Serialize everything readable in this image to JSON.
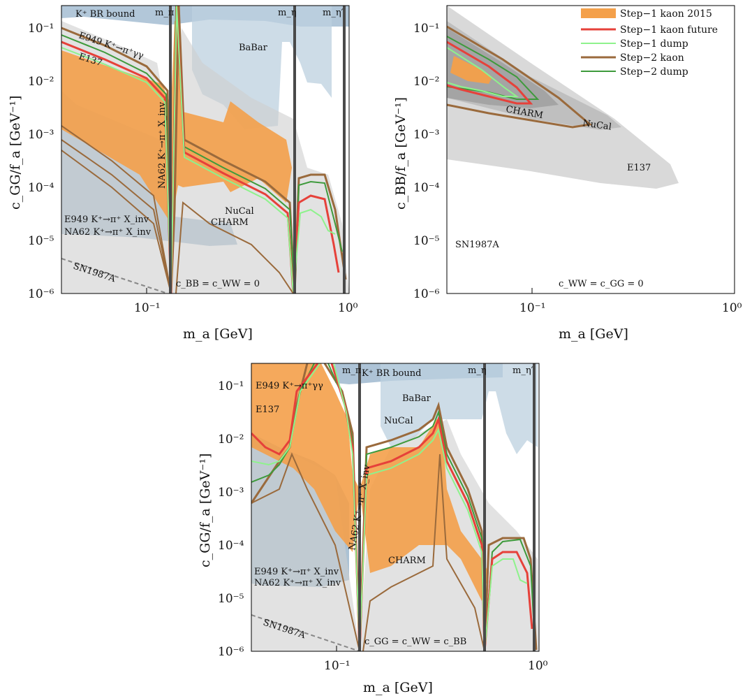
{
  "legend": {
    "entries": [
      {
        "label": "Step−1 kaon 2015",
        "color": "#f4a04a",
        "kind": "patch"
      },
      {
        "label": "Step−1 kaon future",
        "color": "#e6413a",
        "kind": "line"
      },
      {
        "label": "Step−1 dump",
        "color": "#8ef28c",
        "kind": "line"
      },
      {
        "label": "Step−2 kaon",
        "color": "#9a6a3c",
        "kind": "line"
      },
      {
        "label": "Step−2 dump",
        "color": "#3e9a3c",
        "kind": "line"
      }
    ]
  },
  "colors": {
    "kaon2015": "#f4a04a",
    "kaon_future": "#e6413a",
    "dump1": "#8ef28c",
    "kaon2": "#9a6a3c",
    "dump2": "#3e9a3c",
    "excluded_blue": "#9fb9cf",
    "excluded_grey": "#cfcfcf",
    "mass_lines": "#4a4a4a"
  },
  "chart_data": [
    {
      "type": "area",
      "panel": "top-left",
      "xscale": "log",
      "yscale": "log",
      "xlim": [
        0.04,
        1.0
      ],
      "ylim": [
        1e-06,
        0.3
      ],
      "xlabel": "m_a [GeV]",
      "ylabel": "c_GG/f_a [GeV⁻¹]",
      "x_ticks": [
        "10⁻¹",
        "10⁰"
      ],
      "y_ticks": [
        "10⁻⁶",
        "10⁻⁵",
        "10⁻⁴",
        "10⁻³",
        "10⁻²",
        "10⁻¹"
      ],
      "vertical_lines": [
        {
          "label": "m_π",
          "x": 0.135
        },
        {
          "label": "m_η",
          "x": 0.548
        },
        {
          "label": "m_η′",
          "x": 0.958
        }
      ],
      "annotations": [
        "K⁺ BR bound",
        "E949 K⁺→π⁺γγ",
        "E137",
        "BaBar",
        "NA62 K⁺→π⁺ X_inv",
        "NuCal",
        "CHARM",
        "E949 K⁺→π⁺ X_inv",
        "NA62 K⁺→π⁺ X_inv",
        "SN1987A",
        "c_BB = c_WW = 0"
      ],
      "series": [
        {
          "name": "Step−1 kaon 2015",
          "x": [
            0.04,
            0.06,
            0.09,
            0.12,
            0.13,
            0.145,
            0.18,
            0.26,
            0.27,
            0.4,
            0.5,
            0.52
          ],
          "y_upper": [
            0.035,
            0.02,
            0.011,
            0.007,
            0.005,
            0.3,
            0.01,
            0.004,
            0.006,
            0.0018,
            0.0012,
            0.001
          ],
          "y_lower": [
            0.0004,
            0.00025,
            0.00015,
            8e-05,
            3e-05,
            6e-05,
            7e-05,
            8e-05,
            0.0001,
            8e-05,
            6e-05,
            4e-05
          ]
        },
        {
          "name": "Step−1 kaon future",
          "x": [
            0.04,
            0.06,
            0.09,
            0.12,
            0.13,
            0.135,
            0.14,
            0.15,
            0.2,
            0.3,
            0.45,
            0.52,
            0.548,
            0.6,
            0.7,
            0.8,
            0.9
          ],
          "y": [
            0.07,
            0.035,
            0.018,
            0.01,
            0.006,
            0.002,
            0.02,
            0.3,
            0.012,
            0.005,
            0.002,
            0.0004,
            1e-05,
            0.0001,
            0.00015,
            8e-05,
            1e-05
          ]
        },
        {
          "name": "Step−1 dump",
          "x": [
            0.04,
            0.06,
            0.09,
            0.12,
            0.135,
            0.15,
            0.2,
            0.3,
            0.45,
            0.548,
            0.65,
            0.75,
            0.85
          ],
          "y": [
            0.05,
            0.03,
            0.015,
            0.008,
            0.001,
            0.2,
            0.015,
            0.006,
            0.0025,
            1e-05,
            0.0001,
            4e-05,
            2e-05
          ]
        },
        {
          "name": "Step−2 kaon",
          "x": [
            0.04,
            0.06,
            0.09,
            0.12,
            0.135,
            0.15,
            0.2,
            0.3,
            0.45,
            0.548,
            0.6,
            0.7,
            0.8,
            0.9,
            0.95
          ],
          "y": [
            0.12,
            0.06,
            0.03,
            0.015,
            0.001,
            0.3,
            0.02,
            0.009,
            0.004,
            1e-06,
            0.00015,
            0.00017,
            0.00016,
            5e-05,
            3e-06
          ]
        },
        {
          "name": "Step−2 dump",
          "x": [
            0.04,
            0.06,
            0.09,
            0.12,
            0.135,
            0.15,
            0.2,
            0.3,
            0.45,
            0.548,
            0.65,
            0.75,
            0.85
          ],
          "y": [
            0.1,
            0.05,
            0.025,
            0.012,
            0.001,
            0.25,
            0.018,
            0.008,
            0.0035,
            1e-05,
            0.00012,
            0.00014,
            3e-05
          ]
        }
      ]
    },
    {
      "type": "area",
      "panel": "top-right",
      "xscale": "log",
      "yscale": "log",
      "xlim": [
        0.04,
        1.0
      ],
      "ylim": [
        1e-06,
        0.3
      ],
      "xlabel": "m_a [GeV]",
      "ylabel": "c_BB/f_a [GeV⁻¹]",
      "x_ticks": [
        "10⁻¹",
        "10⁰"
      ],
      "y_ticks": [
        "10⁻⁶",
        "10⁻⁵",
        "10⁻⁴",
        "10⁻³",
        "10⁻²",
        "10⁻¹"
      ],
      "annotations": [
        "CHARM",
        "NuCal",
        "E137",
        "SN1987A",
        "c_WW = c_GG = 0"
      ],
      "series": [
        {
          "name": "Step−1 kaon 2015",
          "x": [
            0.04,
            0.05,
            0.06,
            0.07,
            0.075
          ],
          "y_upper": [
            0.03,
            0.025,
            0.018,
            0.014,
            0.012
          ],
          "y_lower": [
            0.012,
            0.011,
            0.009,
            0.008,
            0.008
          ]
        },
        {
          "name": "Step−1 kaon future",
          "x": [
            0.04,
            0.06,
            0.08,
            0.1,
            0.11,
            0.1,
            0.08,
            0.06,
            0.04
          ],
          "y": [
            0.05,
            0.03,
            0.015,
            0.008,
            0.004,
            0.004,
            0.005,
            0.006,
            0.008
          ]
        },
        {
          "name": "Step−1 dump",
          "x": [
            0.04,
            0.06,
            0.08,
            0.095,
            0.08,
            0.06,
            0.04
          ],
          "y": [
            0.04,
            0.025,
            0.012,
            0.006,
            0.005,
            0.0055,
            0.007
          ]
        },
        {
          "name": "Step−2 kaon",
          "x": [
            0.04,
            0.08,
            0.14,
            0.2,
            0.2,
            0.14,
            0.08,
            0.04
          ],
          "y": [
            0.12,
            0.05,
            0.02,
            0.008,
            0.0015,
            0.002,
            0.0028,
            0.004
          ]
        },
        {
          "name": "Step−2 dump",
          "x": [
            0.04,
            0.06,
            0.09,
            0.11,
            0.09,
            0.06,
            0.04
          ],
          "y": [
            0.08,
            0.04,
            0.015,
            0.005,
            0.0035,
            0.004,
            0.005
          ]
        }
      ]
    },
    {
      "type": "area",
      "panel": "bottom",
      "xscale": "log",
      "yscale": "log",
      "xlim": [
        0.04,
        1.0
      ],
      "ylim": [
        1e-06,
        0.3
      ],
      "xlabel": "m_a [GeV]",
      "ylabel": "c_GG/f_a [GeV⁻¹]",
      "x_ticks": [
        "10⁻¹",
        "10⁰"
      ],
      "y_ticks": [
        "10⁻⁶",
        "10⁻⁵",
        "10⁻⁴",
        "10⁻³",
        "10⁻²",
        "10⁻¹"
      ],
      "vertical_lines": [
        {
          "label": "m_π",
          "x": 0.135
        },
        {
          "label": "m_η",
          "x": 0.548
        },
        {
          "label": "m_η′",
          "x": 0.958
        }
      ],
      "annotations": [
        "K⁺ BR bound",
        "E949 K⁺→π⁺γγ",
        "E137",
        "BaBar",
        "NuCal",
        "NA62 K⁺→π⁺ X_inv",
        "CHARM",
        "E949 K⁺→π⁺ X_inv",
        "NA62 K⁺→π⁺ X_inv",
        "SN1987A",
        "c_GG = c_WW = c_BB"
      ],
      "series": [
        {
          "name": "Step−1 kaon 2015",
          "x": [
            0.04,
            0.06,
            0.09,
            0.12,
            0.135,
            0.15,
            0.25,
            0.33,
            0.5,
            0.55
          ],
          "y_upper": [
            0.3,
            0.3,
            0.1,
            0.01,
            0.003,
            0.005,
            0.005,
            0.03,
            0.001,
            0.0002
          ],
          "y_lower": [
            0.003,
            0.001,
            0.0006,
            0.0002,
            3e-05,
            5e-05,
            8e-05,
            0.0001,
            3e-05,
            3e-05
          ]
        },
        {
          "name": "Step−1 kaon future",
          "x": [
            0.04,
            0.06,
            0.066,
            0.09,
            0.12,
            0.135,
            0.15,
            0.2,
            0.3,
            0.33,
            0.4,
            0.5,
            0.548,
            0.6,
            0.7,
            0.8,
            0.9
          ],
          "y": [
            0.013,
            0.007,
            0.01,
            0.3,
            0.05,
            1e-05,
            0.005,
            0.008,
            0.01,
            0.02,
            0.007,
            0.002,
            1e-05,
            0.0001,
            0.00015,
            0.0001,
            1e-05
          ]
        },
        {
          "name": "Step−1 dump",
          "x": [
            0.04,
            0.066,
            0.09,
            0.12,
            0.135,
            0.15,
            0.2,
            0.3,
            0.33,
            0.45,
            0.548,
            0.65,
            0.75,
            0.85
          ],
          "y": [
            0.005,
            0.01,
            0.3,
            0.05,
            1e-05,
            0.008,
            0.012,
            0.015,
            0.03,
            0.005,
            1e-05,
            0.0001,
            5e-05,
            2e-05
          ]
        },
        {
          "name": "Step−2 kaon",
          "x": [
            0.04,
            0.05,
            0.066,
            0.09,
            0.12,
            0.135,
            0.15,
            0.2,
            0.3,
            0.33,
            0.45,
            0.548,
            0.6,
            0.7,
            0.8,
            0.9
          ],
          "y": [
            0.0015,
            0.0005,
            0.01,
            0.3,
            0.06,
            1e-06,
            0.012,
            0.015,
            0.02,
            0.04,
            0.008,
            1e-06,
            0.00015,
            0.00017,
            0.00015,
            3e-06
          ]
        },
        {
          "name": "Step−2 dump",
          "x": [
            0.04,
            0.066,
            0.09,
            0.12,
            0.135,
            0.15,
            0.2,
            0.3,
            0.33,
            0.45,
            0.548,
            0.65,
            0.75,
            0.85
          ],
          "y": [
            0.003,
            0.01,
            0.3,
            0.05,
            1e-05,
            0.01,
            0.014,
            0.018,
            0.035,
            0.006,
            1e-05,
            0.00012,
            0.00014,
            3e-05
          ]
        }
      ]
    }
  ]
}
